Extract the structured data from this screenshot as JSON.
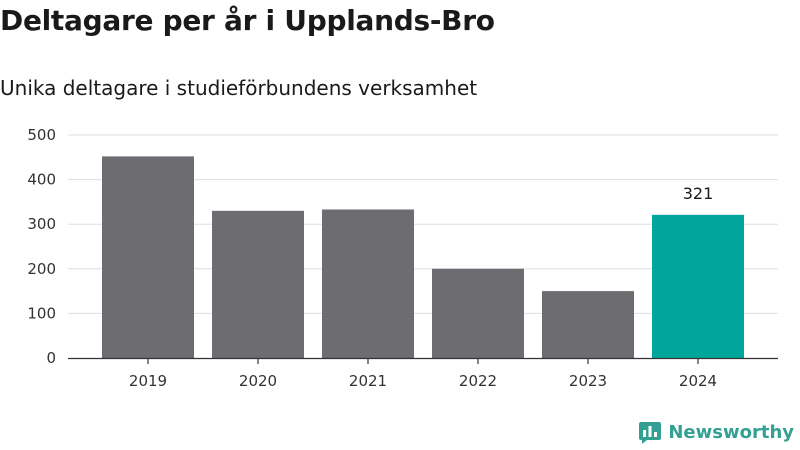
{
  "title": "Deltagare per år i Upplands-Bro",
  "subtitle": "Unika deltagare i studieförbundens verksamhet",
  "brand": {
    "name": "Newsworthy",
    "icon": "newsworthy-logo-icon",
    "color": "#34a093"
  },
  "chart_data": {
    "type": "bar",
    "categories": [
      "2019",
      "2020",
      "2021",
      "2022",
      "2023",
      "2024"
    ],
    "values": [
      452,
      330,
      333,
      200,
      150,
      321
    ],
    "title": "Deltagare per år i Upplands-Bro",
    "subtitle": "Unika deltagare i studieförbundens verksamhet",
    "xlabel": "",
    "ylabel": "",
    "ylim": [
      0,
      500
    ],
    "yticks": [
      0,
      100,
      200,
      300,
      400,
      500
    ],
    "grid": true,
    "colors": {
      "default": "#6d6c71",
      "highlight": "#00a69c"
    },
    "highlight_index": 5,
    "data_labels": [
      {
        "index": 5,
        "text": "321"
      }
    ]
  }
}
